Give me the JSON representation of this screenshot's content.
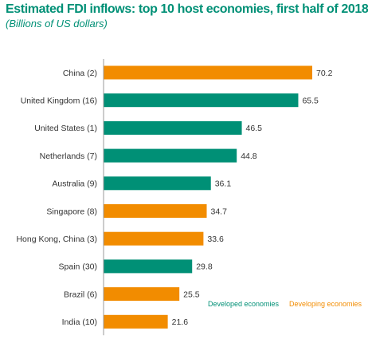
{
  "header": {
    "title": "Estimated FDI inflows: top 10 host economies, first half of 2018",
    "subtitle": "(Billions of US dollars)"
  },
  "colors": {
    "developed": "#009076",
    "developing": "#F28C00"
  },
  "chart_data": {
    "type": "bar",
    "orientation": "horizontal",
    "categories": [
      "China (2)",
      "United Kingdom (16)",
      "United States (1)",
      "Netherlands (7)",
      "Australia (9)",
      "Singapore (8)",
      "Hong Kong, China (3)",
      "Spain (30)",
      "Brazil (6)",
      "India (10)"
    ],
    "values": [
      70.2,
      65.5,
      46.5,
      44.8,
      36.1,
      34.7,
      33.6,
      29.8,
      25.5,
      21.6
    ],
    "labels": [
      "70.2",
      "65.5",
      "46.5",
      "44.8",
      "36.1",
      "34.7",
      "33.6",
      "29.8",
      "25.5",
      "21.6"
    ],
    "groups": [
      "developing",
      "developed",
      "developed",
      "developed",
      "developed",
      "developing",
      "developing",
      "developed",
      "developing",
      "developing"
    ],
    "title": "Estimated FDI inflows: top 10 host economies, first half of 2018",
    "subtitle": "(Billions of US dollars)",
    "xlim": [
      0,
      70.2
    ],
    "grid": false,
    "legend": [
      {
        "key": "developed",
        "label": "Developed economies"
      },
      {
        "key": "developing",
        "label": "Developing economies"
      }
    ],
    "legend_position": "bottom-right"
  }
}
